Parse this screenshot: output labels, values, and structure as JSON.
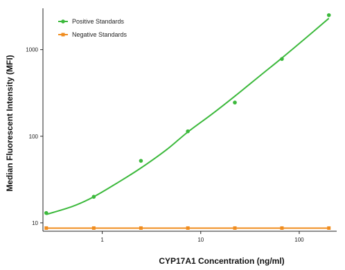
{
  "chart_data": {
    "type": "line",
    "title": "",
    "xlabel": "CYP17A1 Concentration (ng/ml)",
    "ylabel": "Median Fluorescent Intensity (MFI)",
    "xscale": "log",
    "yscale": "log",
    "xlim": [
      0.25,
      240
    ],
    "ylim": [
      8,
      3000
    ],
    "x_ticks": [
      1,
      10,
      100
    ],
    "x_tick_labels": [
      "1",
      "10",
      "100"
    ],
    "y_ticks": [
      10,
      100,
      1000
    ],
    "y_tick_labels": [
      "10",
      "100",
      "1000"
    ],
    "legend_position": "top-left",
    "grid": false,
    "series": [
      {
        "name": "Positive Standards",
        "color": "#3cb93c",
        "marker": "circle",
        "points": [
          {
            "x": 0.27,
            "y": 13
          },
          {
            "x": 0.82,
            "y": 20
          },
          {
            "x": 2.47,
            "y": 52
          },
          {
            "x": 7.4,
            "y": 114
          },
          {
            "x": 22.2,
            "y": 245
          },
          {
            "x": 66.7,
            "y": 780
          },
          {
            "x": 200,
            "y": 2500
          }
        ],
        "fit_curve": [
          {
            "x": 0.27,
            "y": 12.5
          },
          {
            "x": 0.5,
            "y": 15.5
          },
          {
            "x": 0.82,
            "y": 20
          },
          {
            "x": 1.5,
            "y": 30
          },
          {
            "x": 2.47,
            "y": 43
          },
          {
            "x": 4.5,
            "y": 70
          },
          {
            "x": 7.4,
            "y": 112
          },
          {
            "x": 13,
            "y": 180
          },
          {
            "x": 22.2,
            "y": 290
          },
          {
            "x": 40,
            "y": 500
          },
          {
            "x": 66.7,
            "y": 800
          },
          {
            "x": 120,
            "y": 1400
          },
          {
            "x": 200,
            "y": 2300
          }
        ]
      },
      {
        "name": "Negative Standards",
        "color": "#f08c1e",
        "marker": "square",
        "points": [
          {
            "x": 0.27,
            "y": 8.7
          },
          {
            "x": 0.82,
            "y": 8.7
          },
          {
            "x": 2.47,
            "y": 8.7
          },
          {
            "x": 7.4,
            "y": 8.7
          },
          {
            "x": 22.2,
            "y": 8.7
          },
          {
            "x": 66.7,
            "y": 8.7
          },
          {
            "x": 200,
            "y": 8.7
          }
        ],
        "fit_curve": [
          {
            "x": 0.27,
            "y": 8.7
          },
          {
            "x": 200,
            "y": 8.7
          }
        ]
      }
    ]
  }
}
